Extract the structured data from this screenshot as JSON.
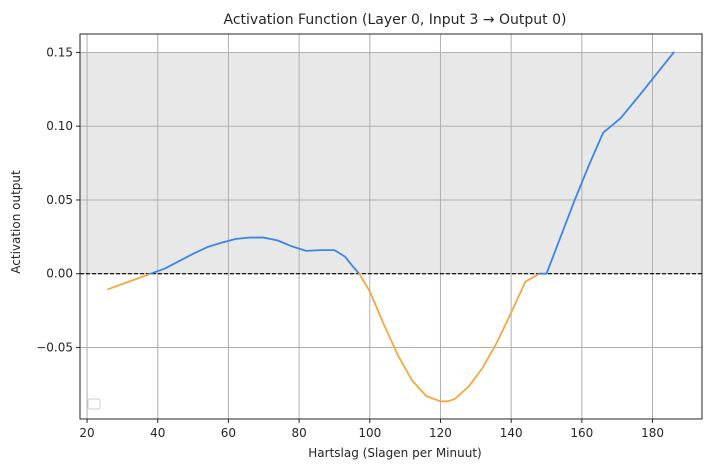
{
  "chart_data": {
    "type": "line",
    "title": "Activation Function (Layer 0, Input 3 → Output 0)",
    "xlabel": "Hartslag (Slagen per Minuut)",
    "ylabel": "Activation output",
    "xlim": [
      18,
      194
    ],
    "ylim": [
      -0.0985,
      0.1625
    ],
    "xticks": [
      20,
      40,
      60,
      80,
      100,
      120,
      140,
      160,
      180
    ],
    "yticks": [
      -0.05,
      0.0,
      0.05,
      0.1,
      0.15
    ],
    "ytick_labels": [
      "−0.05",
      "0.00",
      "0.05",
      "0.10",
      "0.15"
    ],
    "grid": true,
    "shaded_band": {
      "y_from": 0.0,
      "y_to": 0.15,
      "color": "#e8e8e8"
    },
    "reference_line": {
      "y": 0.0,
      "style": "dashed",
      "color": "#000000"
    },
    "positive_color": "#3a86e8",
    "negative_color": "#f5a742",
    "legend": {
      "placement": "lower-left",
      "entries": []
    },
    "x": [
      26,
      30,
      34,
      38,
      42,
      46,
      50,
      54,
      58,
      62,
      66,
      70,
      74,
      78,
      82,
      86,
      90,
      93,
      95,
      97,
      100,
      104,
      108,
      112,
      116,
      120,
      122,
      124,
      128,
      132,
      136,
      140,
      144,
      148,
      150,
      154,
      158,
      162,
      166,
      171,
      176,
      181,
      186
    ],
    "y": [
      -0.0105,
      -0.007,
      -0.0035,
      0.0,
      0.0035,
      0.0085,
      0.0135,
      0.018,
      0.021,
      0.0235,
      0.0245,
      0.0245,
      0.0225,
      0.0185,
      0.0155,
      0.016,
      0.016,
      0.0115,
      0.0055,
      0.0,
      -0.012,
      -0.0345,
      -0.0555,
      -0.0725,
      -0.083,
      -0.0865,
      -0.0865,
      -0.085,
      -0.0765,
      -0.0635,
      -0.0465,
      -0.0265,
      -0.0055,
      -0.0,
      0.0,
      0.025,
      0.05,
      0.0735,
      0.0955,
      0.1055,
      0.12,
      0.135,
      0.15
    ]
  }
}
